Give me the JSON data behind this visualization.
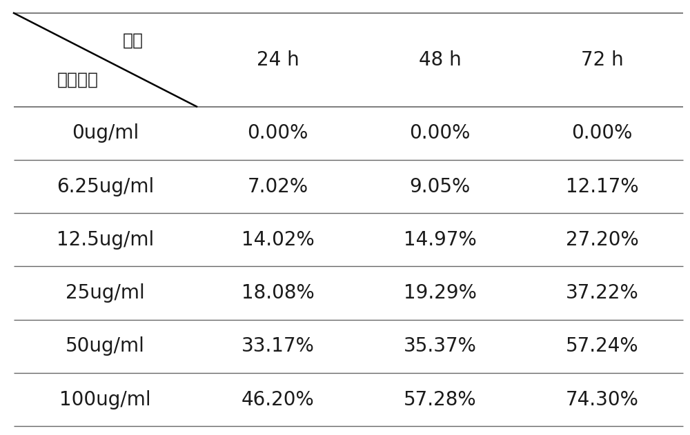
{
  "col_headers": [
    "24 h",
    "48 h",
    "72 h"
  ],
  "row_headers": [
    "0ug/ml",
    "6.25ug/ml",
    "12.5ug/ml",
    "25ug/ml",
    "50ug/ml",
    "100ug/ml"
  ],
  "cell_data": [
    [
      "0.00%",
      "0.00%",
      "0.00%"
    ],
    [
      "7.02%",
      "9.05%",
      "12.17%"
    ],
    [
      "14.02%",
      "14.97%",
      "27.20%"
    ],
    [
      "18.08%",
      "19.29%",
      "37.22%"
    ],
    [
      "33.17%",
      "35.37%",
      "57.24%"
    ],
    [
      "46.20%",
      "57.28%",
      "74.30%"
    ]
  ],
  "header_label_top": "时间",
  "header_label_bottom": "样品浓度",
  "bg_color": "#ffffff",
  "text_color": "#1a1a1a",
  "line_color": "#666666",
  "font_size_header": 20,
  "font_size_cell": 20,
  "font_size_corner": 18,
  "fig_width": 10.0,
  "fig_height": 6.31,
  "dpi": 100
}
